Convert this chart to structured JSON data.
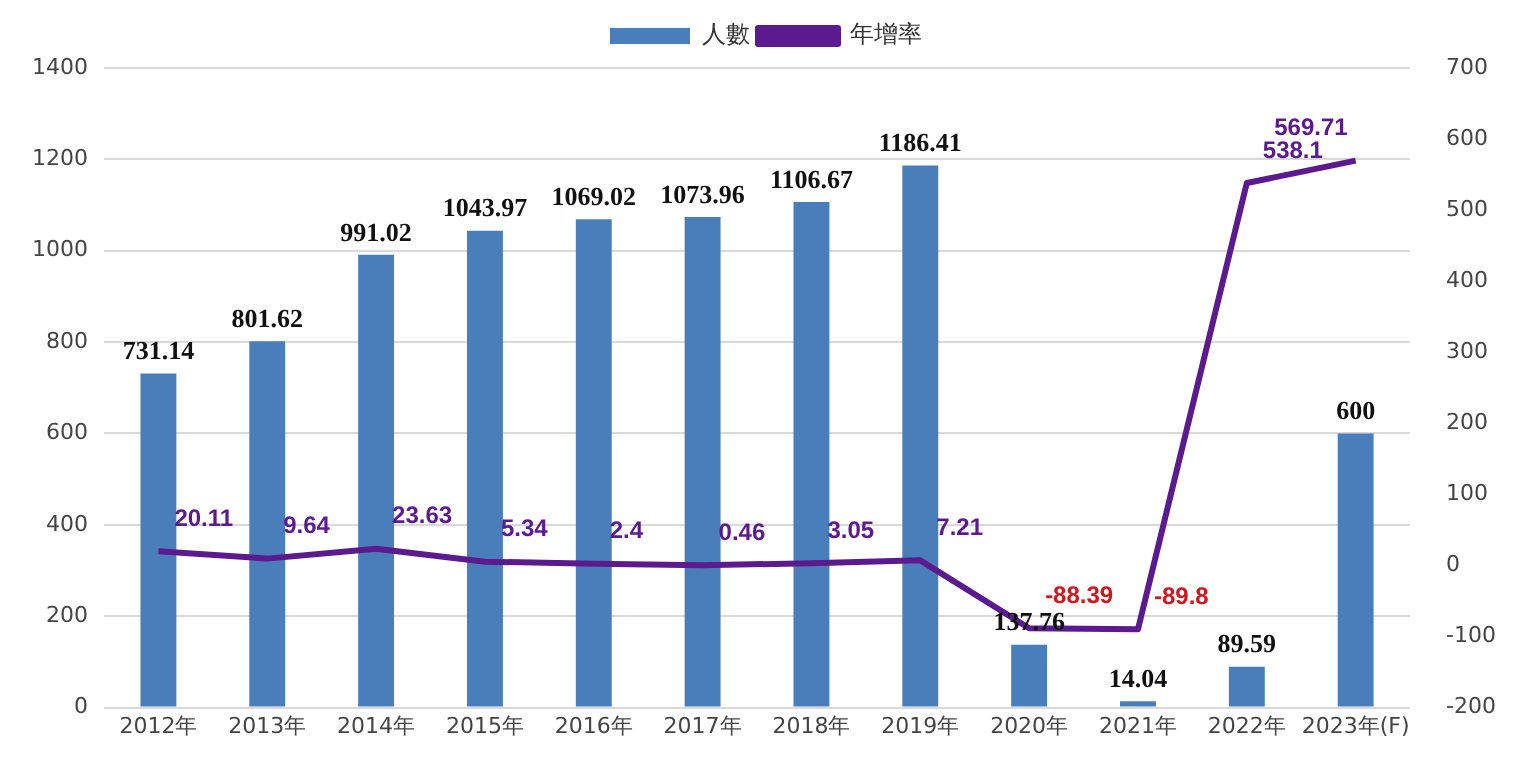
{
  "chart_data": {
    "type": "bar",
    "categories": [
      "2012年",
      "2013年",
      "2014年",
      "2015年",
      "2016年",
      "2017年",
      "2018年",
      "2019年",
      "2020年",
      "2021年",
      "2022年",
      "2023年(F)"
    ],
    "series": [
      {
        "name": "人數",
        "color": "#4a7ebb",
        "values": [
          731.14,
          801.62,
          991.02,
          1043.97,
          1069.02,
          1073.96,
          1106.67,
          1186.41,
          137.76,
          14.04,
          89.59,
          600
        ]
      },
      {
        "name": "年增率",
        "type": "line",
        "axis": "y2",
        "color": "#5b1a8e",
        "values": [
          20.11,
          9.64,
          23.63,
          5.34,
          2.4,
          0.46,
          3.05,
          7.21,
          -88.39,
          -89.8,
          538.1,
          569.71
        ]
      }
    ],
    "ylim": [
      0,
      1400
    ],
    "yticks": [
      0,
      200,
      400,
      600,
      800,
      1000,
      1200,
      1400
    ],
    "y2lim": [
      -200,
      700
    ],
    "y2ticks": [
      -200,
      -100,
      0,
      100,
      200,
      300,
      400,
      500,
      600,
      700
    ],
    "grid": "y",
    "legend": "top",
    "marker": "none",
    "line_style": "solid",
    "data_labels": true
  }
}
